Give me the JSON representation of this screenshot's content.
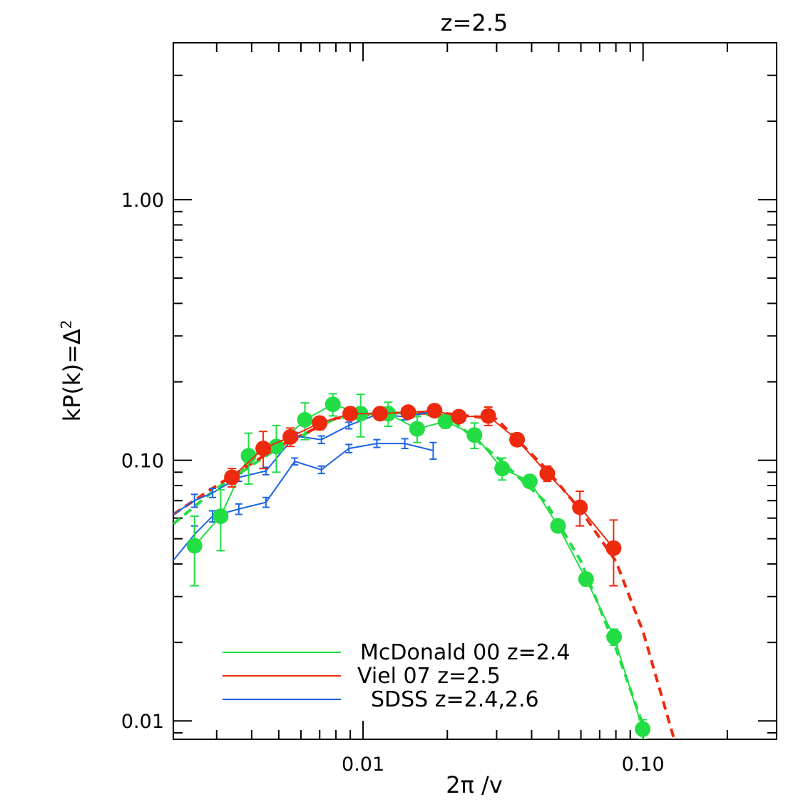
{
  "chart_data": {
    "type": "line",
    "title": "z=2.5",
    "xlabel": "2π /v",
    "ylabel_base": "kP(k)=Δ",
    "ylabel_sup": "2",
    "xscale": "log",
    "yscale": "log",
    "xlim": [
      0.0021,
      0.3
    ],
    "ylim": [
      0.0085,
      4.0
    ],
    "xticks": [
      {
        "value": 0.01,
        "label": "0.01"
      },
      {
        "value": 0.1,
        "label": "0.10"
      }
    ],
    "yticks": [
      {
        "value": 0.01,
        "label": "0.01"
      },
      {
        "value": 0.1,
        "label": "0.10"
      },
      {
        "value": 1.0,
        "label": "1.00"
      }
    ],
    "grid": false,
    "legend_position": "bottom-left",
    "colors": {
      "green": "#22dd44",
      "red": "#ee2a0e",
      "blue": "#1c64e6"
    },
    "series": [
      {
        "name": "McDonald 00 z=2.4",
        "color": "#22dd44",
        "marker": "filled-circle",
        "x": [
          0.0025,
          0.0031,
          0.0039,
          0.0049,
          0.0062,
          0.0078,
          0.0098,
          0.0123,
          0.0156,
          0.0197,
          0.025,
          0.0314,
          0.0394,
          0.0497,
          0.0626,
          0.0788,
          0.0997
        ],
        "y": [
          0.047,
          0.061,
          0.104,
          0.113,
          0.143,
          0.164,
          0.151,
          0.151,
          0.132,
          0.141,
          0.125,
          0.093,
          0.083,
          0.056,
          0.035,
          0.021,
          0.0093
        ],
        "err": [
          0.014,
          0.016,
          0.023,
          0.023,
          0.023,
          0.016,
          0.028,
          0.016,
          0.015,
          0.008,
          0.014,
          0.009,
          0.004,
          0.003,
          0.002,
          0.0015,
          0.0008
        ],
        "model": {
          "x": [
            0.0021,
            0.003,
            0.005,
            0.008,
            0.012,
            0.02,
            0.03,
            0.045,
            0.06,
            0.08,
            0.1,
            0.115
          ],
          "y": [
            0.057,
            0.078,
            0.112,
            0.145,
            0.153,
            0.148,
            0.103,
            0.069,
            0.041,
            0.019,
            0.0096,
            0.0057
          ]
        }
      },
      {
        "name": "Viel 07 z=2.5",
        "color": "#ee2a0e",
        "marker": "filled-circle",
        "x": [
          0.0034,
          0.0044,
          0.0055,
          0.007,
          0.009,
          0.0115,
          0.0145,
          0.018,
          0.022,
          0.028,
          0.0355,
          0.0455,
          0.0595,
          0.0785
        ],
        "y": [
          0.086,
          0.111,
          0.123,
          0.139,
          0.151,
          0.151,
          0.153,
          0.155,
          0.147,
          0.148,
          0.12,
          0.089,
          0.066,
          0.046
        ],
        "err": [
          0.007,
          0.018,
          0.01,
          0.008,
          0.008,
          0.006,
          0.005,
          0.005,
          0.006,
          0.012,
          0.006,
          0.006,
          0.01,
          0.013
        ],
        "model": {
          "x": [
            0.0021,
            0.003,
            0.005,
            0.008,
            0.012,
            0.02,
            0.03,
            0.045,
            0.06,
            0.08,
            0.1,
            0.13
          ],
          "y": [
            0.062,
            0.08,
            0.113,
            0.145,
            0.152,
            0.151,
            0.144,
            0.093,
            0.064,
            0.041,
            0.022,
            0.0083
          ]
        }
      },
      {
        "name": "SDSS z=2.4,2.6",
        "color": "#1c64e6",
        "marker": "errorbar",
        "curves": [
          {
            "x": [
              0.00205,
              0.0025,
              0.0029,
              0.0036,
              0.0045,
              0.0057,
              0.0071,
              0.0089,
              0.0112,
              0.0141,
              0.0178
            ],
            "y": [
              0.061,
              0.07,
              0.075,
              0.086,
              0.091,
              0.124,
              0.12,
              0.136,
              0.15,
              0.147,
              0.154
            ],
            "err": [
              0.0,
              0.004,
              0.003,
              0.003,
              0.003,
              0.004,
              0.004,
              0.004,
              0.004,
              0.004,
              0.005
            ]
          },
          {
            "x": [
              0.00205,
              0.0025,
              0.0029,
              0.0036,
              0.0045,
              0.0057,
              0.0071,
              0.0089,
              0.0112,
              0.0141,
              0.0178
            ],
            "y": [
              0.04,
              0.052,
              0.061,
              0.065,
              0.069,
              0.099,
              0.092,
              0.111,
              0.116,
              0.116,
              0.109
            ],
            "err": [
              0.0,
              0.004,
              0.003,
              0.003,
              0.003,
              0.003,
              0.003,
              0.004,
              0.004,
              0.005,
              0.008
            ]
          }
        ]
      }
    ]
  }
}
